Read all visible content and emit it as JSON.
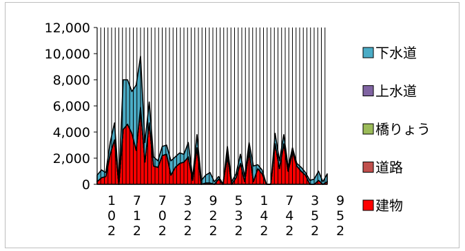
{
  "chart_data": {
    "type": "area",
    "stacked": true,
    "ylim": [
      0,
      12000
    ],
    "y_ticks": [
      "0",
      "2,000",
      "4,000",
      "6,000",
      "8,000",
      "10,000",
      "12,000"
    ],
    "y_tick_values": [
      0,
      2000,
      4000,
      6000,
      8000,
      10000,
      12000
    ],
    "x_tick_labels": [
      "1\n0\n2",
      "7\n1\n2",
      "7\n0\n2",
      "3\n2\n2",
      "9\n2\n2",
      "5\n3\n2",
      "1\n4\n2",
      "7\n4\n2",
      "3\n5\n2",
      "9\n5\n2"
    ],
    "grid": "vertical",
    "legend_position": "right",
    "series": [
      {
        "name": "建物",
        "color": "#ff0000",
        "values": [
          200,
          500,
          600,
          2300,
          3400,
          0,
          4200,
          4600,
          3900,
          2600,
          5900,
          1700,
          4700,
          1400,
          1300,
          2200,
          2300,
          700,
          1300,
          1600,
          1700,
          2100,
          300,
          2800,
          0,
          100,
          100,
          0,
          400,
          0,
          2300,
          0,
          500,
          1600,
          200,
          2700,
          200,
          1200,
          800,
          0,
          0,
          3100,
          1200,
          3100,
          1000,
          2500,
          1400,
          1000,
          700,
          0,
          0,
          300,
          0,
          200
        ]
      },
      {
        "name": "道路",
        "color": "#c0504d",
        "values": [
          0,
          0,
          0,
          0,
          0,
          0,
          0,
          0,
          0,
          0,
          0,
          0,
          0,
          0,
          0,
          0,
          0,
          0,
          0,
          0,
          0,
          0,
          0,
          0,
          0,
          0,
          0,
          0,
          0,
          0,
          0,
          0,
          0,
          0,
          0,
          0,
          0,
          0,
          0,
          0,
          0,
          0,
          0,
          0,
          0,
          0,
          0,
          0,
          0,
          0,
          0,
          0,
          0,
          0
        ]
      },
      {
        "name": "橋りょう",
        "color": "#9bbb59",
        "values": [
          0,
          0,
          0,
          0,
          0,
          0,
          0,
          0,
          0,
          0,
          0,
          0,
          0,
          0,
          0,
          0,
          0,
          0,
          0,
          0,
          0,
          0,
          0,
          0,
          0,
          0,
          0,
          0,
          0,
          0,
          0,
          0,
          0,
          0,
          0,
          0,
          0,
          0,
          0,
          0,
          0,
          0,
          0,
          0,
          0,
          0,
          0,
          0,
          0,
          0,
          0,
          0,
          0,
          0
        ]
      },
      {
        "name": "上水道",
        "color": "#8064a2",
        "values": [
          0,
          0,
          0,
          0,
          0,
          0,
          0,
          0,
          0,
          0,
          0,
          0,
          0,
          0,
          0,
          0,
          0,
          0,
          0,
          0,
          0,
          0,
          0,
          0,
          0,
          0,
          0,
          0,
          0,
          0,
          0,
          0,
          0,
          0,
          0,
          0,
          0,
          0,
          0,
          0,
          0,
          0,
          0,
          0,
          0,
          0,
          0,
          0,
          0,
          0,
          0,
          0,
          0,
          0
        ]
      },
      {
        "name": "下水道",
        "color": "#4bacc6",
        "values": [
          500,
          600,
          300,
          900,
          1300,
          100,
          3800,
          3400,
          3200,
          5000,
          3900,
          1500,
          1600,
          700,
          500,
          700,
          700,
          1100,
          800,
          800,
          600,
          1100,
          200,
          1000,
          300,
          600,
          800,
          200,
          200,
          0,
          600,
          200,
          300,
          700,
          400,
          500,
          1200,
          300,
          300,
          0,
          0,
          800,
          600,
          700,
          300,
          300,
          200,
          300,
          200,
          300,
          400,
          700,
          200,
          600
        ]
      }
    ]
  }
}
